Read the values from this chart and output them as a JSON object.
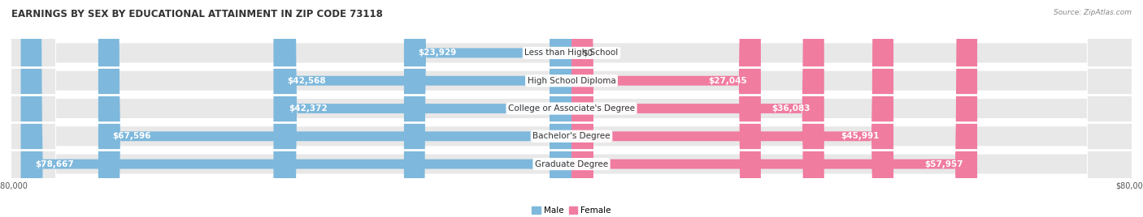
{
  "title": "EARNINGS BY SEX BY EDUCATIONAL ATTAINMENT IN ZIP CODE 73118",
  "source": "Source: ZipAtlas.com",
  "categories": [
    "Less than High School",
    "High School Diploma",
    "College or Associate's Degree",
    "Bachelor's Degree",
    "Graduate Degree"
  ],
  "male_values": [
    23929,
    42568,
    42372,
    67596,
    78667
  ],
  "female_values": [
    0,
    27045,
    36083,
    45991,
    57957
  ],
  "male_color": "#7EB8DC",
  "female_color": "#F07CA0",
  "max_value": 80000,
  "bg_color": "#FFFFFF",
  "row_bg_color": "#E8E8E8",
  "row_bg_color_dark": "#D8D8D8",
  "title_fontsize": 8.5,
  "source_fontsize": 6.5,
  "bar_label_fontsize": 7.5,
  "cat_label_fontsize": 7.5,
  "axis_fontsize": 7.0,
  "legend_fontsize": 7.5
}
